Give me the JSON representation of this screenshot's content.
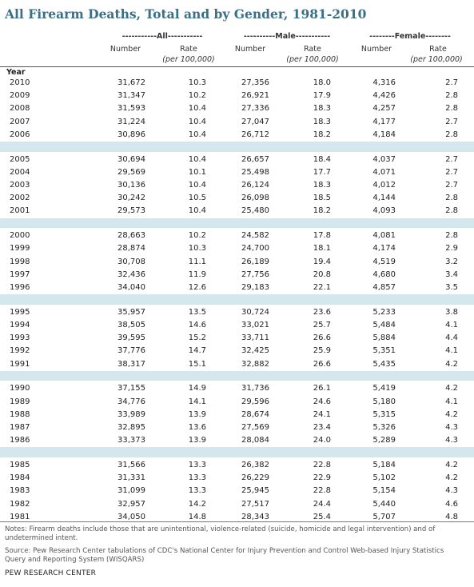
{
  "title": "All Firearm Deaths, Total and by Gender, 1981-2010",
  "groups": {
    "all": "-----------All-----------",
    "male": "----------Male-----------",
    "female": "--------Female--------"
  },
  "columns": {
    "number": "Number",
    "rate": "Rate",
    "rate_unit": "(per 100,000)",
    "year": "Year"
  },
  "blocks": [
    [
      [
        "2010",
        "31,672",
        "10.3",
        "27,356",
        "18.0",
        "4,316",
        "2.7"
      ],
      [
        "2009",
        "31,347",
        "10.2",
        "26,921",
        "17.9",
        "4,426",
        "2.8"
      ],
      [
        "2008",
        "31,593",
        "10.4",
        "27,336",
        "18.3",
        "4,257",
        "2.8"
      ],
      [
        "2007",
        "31,224",
        "10.4",
        "27,047",
        "18.3",
        "4,177",
        "2.7"
      ],
      [
        "2006",
        "30,896",
        "10.4",
        "26,712",
        "18.2",
        "4,184",
        "2.8"
      ]
    ],
    [
      [
        "2005",
        "30,694",
        "10.4",
        "26,657",
        "18.4",
        "4,037",
        "2.7"
      ],
      [
        "2004",
        "29,569",
        "10.1",
        "25,498",
        "17.7",
        "4,071",
        "2.7"
      ],
      [
        "2003",
        "30,136",
        "10.4",
        "26,124",
        "18.3",
        "4,012",
        "2.7"
      ],
      [
        "2002",
        "30,242",
        "10.5",
        "26,098",
        "18.5",
        "4,144",
        "2.8"
      ],
      [
        "2001",
        "29,573",
        "10.4",
        "25,480",
        "18.2",
        "4,093",
        "2.8"
      ]
    ],
    [
      [
        "2000",
        "28,663",
        "10.2",
        "24,582",
        "17.8",
        "4,081",
        "2.8"
      ],
      [
        "1999",
        "28,874",
        "10.3",
        "24,700",
        "18.1",
        "4,174",
        "2.9"
      ],
      [
        "1998",
        "30,708",
        "11.1",
        "26,189",
        "19.4",
        "4,519",
        "3.2"
      ],
      [
        "1997",
        "32,436",
        "11.9",
        "27,756",
        "20.8",
        "4,680",
        "3.4"
      ],
      [
        "1996",
        "34,040",
        "12.6",
        "29,183",
        "22.1",
        "4,857",
        "3.5"
      ]
    ],
    [
      [
        "1995",
        "35,957",
        "13.5",
        "30,724",
        "23.6",
        "5,233",
        "3.8"
      ],
      [
        "1994",
        "38,505",
        "14.6",
        "33,021",
        "25.7",
        "5,484",
        "4.1"
      ],
      [
        "1993",
        "39,595",
        "15.2",
        "33,711",
        "26.6",
        "5,884",
        "4.4"
      ],
      [
        "1992",
        "37,776",
        "14.7",
        "32,425",
        "25.9",
        "5,351",
        "4.1"
      ],
      [
        "1991",
        "38,317",
        "15.1",
        "32,882",
        "26.6",
        "5,435",
        "4.2"
      ]
    ],
    [
      [
        "1990",
        "37,155",
        "14.9",
        "31,736",
        "26.1",
        "5,419",
        "4.2"
      ],
      [
        "1989",
        "34,776",
        "14.1",
        "29,596",
        "24.6",
        "5,180",
        "4.1"
      ],
      [
        "1988",
        "33,989",
        "13.9",
        "28,674",
        "24.1",
        "5,315",
        "4.2"
      ],
      [
        "1987",
        "32,895",
        "13.6",
        "27,569",
        "23.4",
        "5,326",
        "4.3"
      ],
      [
        "1986",
        "33,373",
        "13.9",
        "28,084",
        "24.0",
        "5,289",
        "4.3"
      ]
    ],
    [
      [
        "1985",
        "31,566",
        "13.3",
        "26,382",
        "22.8",
        "5,184",
        "4.2"
      ],
      [
        "1984",
        "31,331",
        "13.3",
        "26,229",
        "22.9",
        "5,102",
        "4.2"
      ],
      [
        "1983",
        "31,099",
        "13.3",
        "25,945",
        "22.8",
        "5,154",
        "4.3"
      ],
      [
        "1982",
        "32,957",
        "14.2",
        "27,517",
        "24.4",
        "5,440",
        "4.6"
      ],
      [
        "1981",
        "34,050",
        "14.8",
        "28,343",
        "25.4",
        "5,707",
        "4.8"
      ]
    ]
  ],
  "notes": "Notes: Firearm deaths include those that are unintentional, violence-related (suicide, homicide and legal intervention) and of undetermined intent.",
  "source": "Source: Pew Research Center tabulations of CDC's National Center for Injury Prevention and Control Web-based Injury Statistics Query and Reporting System (WISQARS)",
  "credit": "PEW RESEARCH CENTER"
}
